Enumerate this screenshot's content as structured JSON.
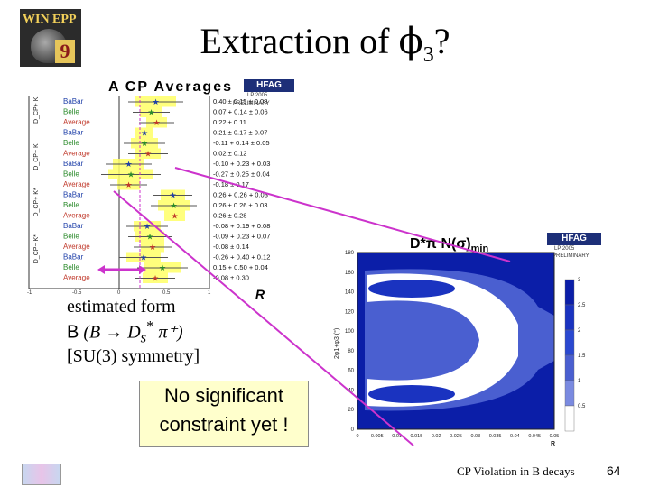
{
  "header": {
    "logo_text": "WIN EPP",
    "logo_number": "9",
    "title_prefix": "Extraction of ",
    "title_phi": "ϕ",
    "title_sub": "3",
    "title_suffix": "?"
  },
  "acp_panel": {
    "title": "A CP Averages",
    "hfag": "HFAG",
    "hfag_sub": "LP 2005",
    "prelim": "PRELIMINARY",
    "groups": [
      "D_CP+ K",
      "D_CP− K",
      "D_CP+ K*",
      "D_CP− K*"
    ],
    "rows": [
      {
        "label": "BaBar",
        "value": "0.40 ± 0.15 ± 0.08"
      },
      {
        "label": "Belle",
        "value": "0.07 + 0.14 ± 0.06"
      },
      {
        "label": "Average",
        "value": "0.22 ± 0.11"
      },
      {
        "label": "BaBar",
        "value": "0.21 ± 0.17 ± 0.07"
      },
      {
        "label": "Belle",
        "value": "-0.11 + 0.14 ± 0.05"
      },
      {
        "label": "Average",
        "value": "0.02 ± 0.12"
      },
      {
        "label": "BaBar",
        "value": "-0.10 + 0.23 + 0.03"
      },
      {
        "label": "Belle",
        "value": "-0.27 ± 0.25 ± 0.04"
      },
      {
        "label": "Average",
        "value": "-0.18 ± 0.17"
      },
      {
        "label": "BaBar",
        "value": "0.26 + 0.26 + 0.03"
      },
      {
        "label": "Belle",
        "value": "0.26 ± 0.26 ± 0.03"
      },
      {
        "label": "Average",
        "value": "0.26 ± 0.28"
      },
      {
        "label": "BaBar",
        "value": "-0.08 + 0.19 + 0.08"
      },
      {
        "label": "Belle",
        "value": "-0.09 + 0.23 + 0.07"
      },
      {
        "label": "Average",
        "value": "-0.08 ± 0.14"
      },
      {
        "label": "BaBar",
        "value": "-0.26 + 0.40 + 0.12"
      },
      {
        "label": "Belle",
        "value": "0.15 + 0.50 + 0.04"
      },
      {
        "label": "Average",
        "value": "-0.08 ± 0.30"
      }
    ],
    "axis_label": "R",
    "axis_ticks": [
      "-1",
      "-0.5",
      "0",
      "0.5",
      "1"
    ]
  },
  "note": {
    "line1": "estimated form",
    "line2_b": "B",
    "line2_rest": " (B → D",
    "line2_s": "s",
    "line2_star": "*",
    "line2_end": " π⁺)",
    "line3": "[SU(3) symmetry]"
  },
  "callout": {
    "line1": "No significant",
    "line2": "constraint yet !"
  },
  "dpi_panel": {
    "title": "D*π N(σ)",
    "title_sub": "min",
    "hfag": "HFAG",
    "hfag_sub": "LP 2005",
    "prelim": "PRELIMINARY",
    "ylabel": "2φ1+φ3 (°)",
    "xlabel": "R",
    "yticks": [
      "180",
      "160",
      "140",
      "120",
      "100",
      "80",
      "60",
      "40",
      "20",
      "0"
    ],
    "xticks": [
      "0",
      "0.005",
      "0.01",
      "0.015",
      "0.02",
      "0.025",
      "0.03",
      "0.035",
      "0.04",
      "0.045",
      "0.05"
    ],
    "scale": [
      "3",
      "2.5",
      "2",
      "1.5",
      "1",
      "0.5"
    ]
  },
  "footer": {
    "text": "CP Violation in B decays",
    "page": "64"
  },
  "colors": {
    "highlight": "#ffff66",
    "magenta": "#cc33cc",
    "navy": "#1d2f78",
    "callout_bg": "#ffffcc"
  }
}
